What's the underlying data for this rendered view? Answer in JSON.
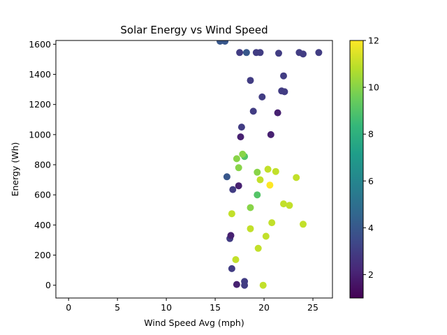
{
  "chart_data": {
    "type": "scatter",
    "title": "Solar Energy vs Wind Speed",
    "xlabel": "Wind Speed Avg (mph)",
    "ylabel": "Energy (Wh)",
    "xlim": [
      -1.3,
      27
    ],
    "ylim": [
      -85,
      1625
    ],
    "xticks": [
      0,
      5,
      10,
      15,
      20,
      25
    ],
    "yticks": [
      0,
      200,
      400,
      600,
      800,
      1000,
      1200,
      1400,
      1600
    ],
    "colorbar": {
      "range": [
        1,
        12
      ],
      "ticks": [
        2,
        4,
        6,
        8,
        10,
        12
      ],
      "colormap": "viridis"
    },
    "marker_color_stops": [
      "#440154",
      "#482878",
      "#3e4989",
      "#31688e",
      "#26828e",
      "#1f9e89",
      "#35b779",
      "#6ece58",
      "#b5de2b",
      "#fde725"
    ],
    "points": [
      {
        "x": 25.6,
        "y": 1545,
        "c": 3
      },
      {
        "x": 24.0,
        "y": 1535,
        "c": 3
      },
      {
        "x": 23.6,
        "y": 1545,
        "c": 3
      },
      {
        "x": 21.5,
        "y": 1540,
        "c": 3
      },
      {
        "x": 19.2,
        "y": 1545,
        "c": 3
      },
      {
        "x": 19.6,
        "y": 1545,
        "c": 3
      },
      {
        "x": 18.2,
        "y": 1545,
        "c": 4
      },
      {
        "x": 17.5,
        "y": 1545,
        "c": 3
      },
      {
        "x": 22.0,
        "y": 1390,
        "c": 3
      },
      {
        "x": 21.8,
        "y": 1290,
        "c": 3
      },
      {
        "x": 22.1,
        "y": 1285,
        "c": 3
      },
      {
        "x": 18.6,
        "y": 1360,
        "c": 3
      },
      {
        "x": 19.8,
        "y": 1250,
        "c": 3
      },
      {
        "x": 21.4,
        "y": 1145,
        "c": 2
      },
      {
        "x": 20.7,
        "y": 1000,
        "c": 2
      },
      {
        "x": 18.9,
        "y": 1155,
        "c": 3
      },
      {
        "x": 17.7,
        "y": 1050,
        "c": 3
      },
      {
        "x": 17.6,
        "y": 985,
        "c": 2
      },
      {
        "x": 18.0,
        "y": 855,
        "c": 9
      },
      {
        "x": 17.8,
        "y": 870,
        "c": 10
      },
      {
        "x": 17.2,
        "y": 840,
        "c": 10
      },
      {
        "x": 17.4,
        "y": 780,
        "c": 10
      },
      {
        "x": 19.3,
        "y": 750,
        "c": 10
      },
      {
        "x": 20.4,
        "y": 770,
        "c": 11
      },
      {
        "x": 21.2,
        "y": 755,
        "c": 11
      },
      {
        "x": 19.6,
        "y": 700,
        "c": 11
      },
      {
        "x": 20.6,
        "y": 665,
        "c": 12
      },
      {
        "x": 23.3,
        "y": 715,
        "c": 11
      },
      {
        "x": 19.3,
        "y": 600,
        "c": 9
      },
      {
        "x": 22.0,
        "y": 540,
        "c": 11
      },
      {
        "x": 22.6,
        "y": 530,
        "c": 11
      },
      {
        "x": 18.6,
        "y": 515,
        "c": 10
      },
      {
        "x": 16.7,
        "y": 475,
        "c": 11
      },
      {
        "x": 20.8,
        "y": 415,
        "c": 11
      },
      {
        "x": 24.0,
        "y": 405,
        "c": 11
      },
      {
        "x": 18.6,
        "y": 375,
        "c": 11
      },
      {
        "x": 20.2,
        "y": 325,
        "c": 11
      },
      {
        "x": 19.4,
        "y": 245,
        "c": 11
      },
      {
        "x": 17.1,
        "y": 170,
        "c": 11
      },
      {
        "x": 19.9,
        "y": 0,
        "c": 11
      },
      {
        "x": 18.0,
        "y": 25,
        "c": 3
      },
      {
        "x": 18.0,
        "y": 0,
        "c": 3
      },
      {
        "x": 16.7,
        "y": 110,
        "c": 3
      },
      {
        "x": 17.2,
        "y": 5,
        "c": 2
      },
      {
        "x": 16.5,
        "y": 310,
        "c": 3
      },
      {
        "x": 16.6,
        "y": 330,
        "c": 2
      },
      {
        "x": 17.4,
        "y": 660,
        "c": 2
      },
      {
        "x": 16.8,
        "y": 635,
        "c": 3
      },
      {
        "x": 16.2,
        "y": 720,
        "c": 4
      },
      {
        "x": 16.0,
        "y": 1620,
        "c": 4
      },
      {
        "x": 15.5,
        "y": 1620,
        "c": 4
      }
    ]
  }
}
